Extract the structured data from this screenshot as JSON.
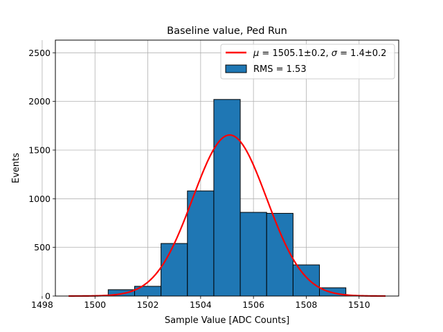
{
  "chart_data": {
    "type": "bar",
    "title": "Baseline value, Ped Run",
    "xlabel": "Sample Value [ADC Counts]",
    "ylabel": "Events",
    "xlim": [
      1498.5,
      1511.5
    ],
    "ylim": [
      0,
      2630
    ],
    "grid": true,
    "legend_position": "top-right",
    "xticks": [
      1498,
      1500,
      1502,
      1504,
      1506,
      1508,
      1510
    ],
    "yticks": [
      0,
      500,
      1000,
      1500,
      2000,
      2500
    ],
    "histogram": {
      "name": "RMS = 1.53",
      "color": "#1f77b4",
      "edgecolor": "#000000",
      "bin_edges": [
        1500.5,
        1501.5,
        1502.5,
        1503.5,
        1504.5,
        1505.5,
        1506.5,
        1507.5,
        1508.5,
        1509.5
      ],
      "counts": [
        65,
        100,
        540,
        1080,
        2020,
        860,
        850,
        320,
        85
      ]
    },
    "fit": {
      "name_parts": {
        "mu_symbol": "μ",
        "mu_text": " = 1505.1±0.2, ",
        "sigma_symbol": "σ",
        "sigma_text": " = 1.4±0.2"
      },
      "color": "#ff0000",
      "mu": 1505.1,
      "sigma": 1.4,
      "amplitude": 1655,
      "x_range": [
        1499,
        1511
      ]
    }
  }
}
